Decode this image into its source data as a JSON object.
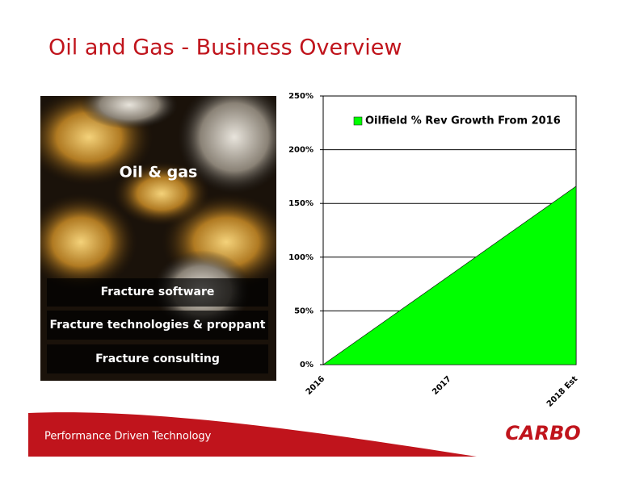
{
  "header": {
    "title": "Oil and Gas - Business Overview"
  },
  "panel": {
    "heading": "Oil & gas",
    "items": [
      "Fracture software",
      "Fracture technologies & proppant",
      "Fracture consulting"
    ]
  },
  "chart_data": {
    "type": "area",
    "categories": [
      "2016",
      "2017",
      "2018 Est"
    ],
    "series": [
      {
        "name": "Oilfield % Rev Growth From 2016",
        "color": "#00ff00",
        "values": [
          0,
          83,
          166
        ]
      }
    ],
    "ylim": [
      0,
      250
    ],
    "yticks": [
      {
        "value": 0,
        "label": "0%"
      },
      {
        "value": 50,
        "label": "50%"
      },
      {
        "value": 100,
        "label": "100%"
      },
      {
        "value": 150,
        "label": "150%"
      },
      {
        "value": 200,
        "label": "200%"
      },
      {
        "value": 250,
        "label": "250%"
      }
    ],
    "grid": true,
    "legend": "upper left"
  },
  "footer": {
    "tagline": "Performance Driven Technology",
    "logo": "CARBO"
  }
}
